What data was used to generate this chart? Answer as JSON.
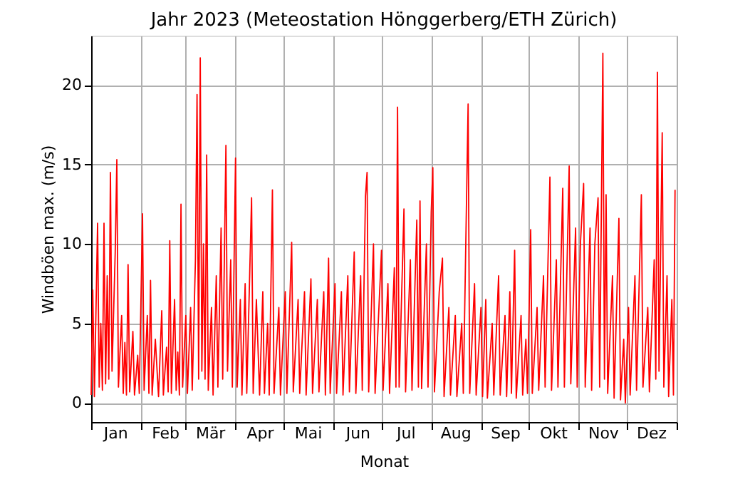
{
  "chart_data": {
    "type": "line",
    "title": "Jahr 2023   (Meteostation Hönggerberg/ETH Zürich)",
    "xlabel": "Monat",
    "ylabel": "Windböen max. (m/s)",
    "xlim": [
      "2023-01-01",
      "2024-01-01"
    ],
    "xticks": [
      {
        "value": "2023-01-01",
        "label": null
      },
      {
        "value": "2023-01-16",
        "label": "Jan"
      },
      {
        "value": "2023-02-01",
        "label": null
      },
      {
        "value": "2023-02-16",
        "label": "Feb"
      },
      {
        "value": "2023-03-01",
        "label": null
      },
      {
        "value": "2023-03-16",
        "label": "Mär"
      },
      {
        "value": "2023-04-01",
        "label": null
      },
      {
        "value": "2023-04-16",
        "label": "Apr"
      },
      {
        "value": "2023-05-01",
        "label": null
      },
      {
        "value": "2023-05-16",
        "label": "Mai"
      },
      {
        "value": "2023-06-01",
        "label": null
      },
      {
        "value": "2023-06-16",
        "label": "Jun"
      },
      {
        "value": "2023-07-01",
        "label": null
      },
      {
        "value": "2023-07-16",
        "label": "Jul"
      },
      {
        "value": "2023-08-01",
        "label": null
      },
      {
        "value": "2023-08-16",
        "label": "Aug"
      },
      {
        "value": "2023-09-01",
        "label": null
      },
      {
        "value": "2023-09-16",
        "label": "Sep"
      },
      {
        "value": "2023-10-01",
        "label": null
      },
      {
        "value": "2023-10-16",
        "label": "Okt"
      },
      {
        "value": "2023-11-01",
        "label": null
      },
      {
        "value": "2023-11-16",
        "label": "Nov"
      },
      {
        "value": "2023-12-01",
        "label": null
      },
      {
        "value": "2023-12-16",
        "label": "Dez"
      },
      {
        "value": "2024-01-01",
        "label": null
      }
    ],
    "ylim": [
      -1.2,
      23.1
    ],
    "yticks": [
      0,
      5,
      10,
      15,
      20
    ],
    "grid": true,
    "line_style": "solid",
    "marker": "none",
    "x": [
      "2023-01-01",
      "2023-01-02",
      "2023-01-03",
      "2023-01-05",
      "2023-01-06",
      "2023-01-07",
      "2023-01-08",
      "2023-01-09",
      "2023-01-10",
      "2023-01-11",
      "2023-01-12",
      "2023-01-13",
      "2023-01-14",
      "2023-01-16",
      "2023-01-17",
      "2023-01-18",
      "2023-01-20",
      "2023-01-21",
      "2023-01-22",
      "2023-01-23",
      "2023-01-24",
      "2023-01-25",
      "2023-01-27",
      "2023-01-28",
      "2023-01-30",
      "2023-01-31",
      "2023-02-02",
      "2023-02-03",
      "2023-02-05",
      "2023-02-06",
      "2023-02-07",
      "2023-02-08",
      "2023-02-10",
      "2023-02-12",
      "2023-02-14",
      "2023-02-15",
      "2023-02-17",
      "2023-02-18",
      "2023-02-19",
      "2023-02-20",
      "2023-02-22",
      "2023-02-23",
      "2023-02-24",
      "2023-02-25",
      "2023-02-26",
      "2023-02-27",
      "2023-03-01",
      "2023-03-02",
      "2023-03-04",
      "2023-03-05",
      "2023-03-07",
      "2023-03-08",
      "2023-03-09",
      "2023-03-10",
      "2023-03-11",
      "2023-03-12",
      "2023-03-13",
      "2023-03-14",
      "2023-03-15",
      "2023-03-17",
      "2023-03-18",
      "2023-03-20",
      "2023-03-21",
      "2023-03-23",
      "2023-03-24",
      "2023-03-26",
      "2023-03-27",
      "2023-03-29",
      "2023-03-30",
      "2023-04-01",
      "2023-04-02",
      "2023-04-04",
      "2023-04-05",
      "2023-04-07",
      "2023-04-08",
      "2023-04-11",
      "2023-04-12",
      "2023-04-14",
      "2023-04-16",
      "2023-04-18",
      "2023-04-19",
      "2023-04-21",
      "2023-04-22",
      "2023-04-24",
      "2023-04-25",
      "2023-04-28",
      "2023-04-29",
      "2023-05-02",
      "2023-05-03",
      "2023-05-06",
      "2023-05-07",
      "2023-05-10",
      "2023-05-11",
      "2023-05-14",
      "2023-05-15",
      "2023-05-18",
      "2023-05-19",
      "2023-05-22",
      "2023-05-23",
      "2023-05-26",
      "2023-05-27",
      "2023-05-29",
      "2023-05-30",
      "2023-06-02",
      "2023-06-03",
      "2023-06-06",
      "2023-06-07",
      "2023-06-10",
      "2023-06-11",
      "2023-06-14",
      "2023-06-15",
      "2023-06-18",
      "2023-06-19",
      "2023-06-21",
      "2023-06-22",
      "2023-06-23",
      "2023-06-26",
      "2023-06-27",
      "2023-07-01",
      "2023-07-02",
      "2023-07-05",
      "2023-07-06",
      "2023-07-09",
      "2023-07-10",
      "2023-07-11",
      "2023-07-12",
      "2023-07-15",
      "2023-07-16",
      "2023-07-19",
      "2023-07-20",
      "2023-07-23",
      "2023-07-24",
      "2023-07-25",
      "2023-07-26",
      "2023-07-29",
      "2023-07-30",
      "2023-08-01",
      "2023-08-02",
      "2023-08-03",
      "2023-08-06",
      "2023-08-08",
      "2023-08-09",
      "2023-08-12",
      "2023-08-13",
      "2023-08-16",
      "2023-08-17",
      "2023-08-20",
      "2023-08-21",
      "2023-08-24",
      "2023-08-25",
      "2023-08-28",
      "2023-08-29",
      "2023-09-01",
      "2023-09-02",
      "2023-09-04",
      "2023-09-05",
      "2023-09-08",
      "2023-09-09",
      "2023-09-12",
      "2023-09-13",
      "2023-09-16",
      "2023-09-17",
      "2023-09-19",
      "2023-09-20",
      "2023-09-22",
      "2023-09-23",
      "2023-09-26",
      "2023-09-27",
      "2023-09-29",
      "2023-09-30",
      "2023-10-02",
      "2023-10-03",
      "2023-10-06",
      "2023-10-07",
      "2023-10-10",
      "2023-10-11",
      "2023-10-14",
      "2023-10-15",
      "2023-10-18",
      "2023-10-19",
      "2023-10-22",
      "2023-10-23",
      "2023-10-26",
      "2023-10-27",
      "2023-10-30",
      "2023-10-31",
      "2023-11-02",
      "2023-11-04",
      "2023-11-05",
      "2023-11-08",
      "2023-11-09",
      "2023-11-11",
      "2023-11-13",
      "2023-11-14",
      "2023-11-16",
      "2023-11-17",
      "2023-11-18",
      "2023-11-19",
      "2023-11-22",
      "2023-11-23",
      "2023-11-26",
      "2023-11-27",
      "2023-11-29",
      "2023-11-30",
      "2023-12-02",
      "2023-12-03",
      "2023-12-06",
      "2023-12-07",
      "2023-12-10",
      "2023-12-11",
      "2023-12-14",
      "2023-12-15",
      "2023-12-18",
      "2023-12-19",
      "2023-12-20",
      "2023-12-21",
      "2023-12-23",
      "2023-12-24",
      "2023-12-26",
      "2023-12-27",
      "2023-12-29",
      "2023-12-30",
      "2023-12-31"
    ],
    "series": [
      {
        "color": "#ff0000",
        "values": [
          0.5,
          7.1,
          0.4,
          11.3,
          1.0,
          5.0,
          0.8,
          11.3,
          1.2,
          8.0,
          1.5,
          14.5,
          2.0,
          9.5,
          15.3,
          1.0,
          5.5,
          0.6,
          3.8,
          0.5,
          8.7,
          0.7,
          4.5,
          0.5,
          3.0,
          0.6,
          11.9,
          0.8,
          5.5,
          0.6,
          7.7,
          0.5,
          4.0,
          0.4,
          5.8,
          0.5,
          3.5,
          0.7,
          10.2,
          0.6,
          6.5,
          0.8,
          3.2,
          0.5,
          12.5,
          1.0,
          5.5,
          0.6,
          6.0,
          0.8,
          9.0,
          19.4,
          1.5,
          21.7,
          2.0,
          10.0,
          1.5,
          15.6,
          0.8,
          6.0,
          0.5,
          8.0,
          1.0,
          11.0,
          1.5,
          16.2,
          2.0,
          9.0,
          1.0,
          15.4,
          1.0,
          6.5,
          0.5,
          7.5,
          0.6,
          12.9,
          0.6,
          6.5,
          0.5,
          7.0,
          0.6,
          5.0,
          0.5,
          13.4,
          0.6,
          6.0,
          0.5,
          7.0,
          0.6,
          10.1,
          0.7,
          6.5,
          0.6,
          7.0,
          0.5,
          7.8,
          0.6,
          6.5,
          0.7,
          7.0,
          0.5,
          9.1,
          0.6,
          7.5,
          0.6,
          7.0,
          0.5,
          8.0,
          0.7,
          9.5,
          0.6,
          8.0,
          0.8,
          13.0,
          14.5,
          0.7,
          10.0,
          0.6,
          9.6,
          0.8,
          7.5,
          0.6,
          8.5,
          1.0,
          18.6,
          1.0,
          12.2,
          0.7,
          9.0,
          0.8,
          11.5,
          1.0,
          12.7,
          0.9,
          10.0,
          1.0,
          12.0,
          14.8,
          0.7,
          7.0,
          9.1,
          0.4,
          6.0,
          0.5,
          5.5,
          0.4,
          5.0,
          0.6,
          18.8,
          0.6,
          7.5,
          0.5,
          6.0,
          0.4,
          6.5,
          0.3,
          5.0,
          0.5,
          8.0,
          0.5,
          5.5,
          0.4,
          7.0,
          0.6,
          9.6,
          0.3,
          5.5,
          0.5,
          4.0,
          0.6,
          10.9,
          0.6,
          6.0,
          0.8,
          8.0,
          1.0,
          14.2,
          0.8,
          9.0,
          1.0,
          13.5,
          1.0,
          14.9,
          1.2,
          11.0,
          1.0,
          10.0,
          13.8,
          1.0,
          11.0,
          0.8,
          10.0,
          12.9,
          1.0,
          22.0,
          1.5,
          13.1,
          0.6,
          8.0,
          0.3,
          11.6,
          0.2,
          4.0,
          0.0,
          6.0,
          0.5,
          8.0,
          0.8,
          13.1,
          1.0,
          6.0,
          0.7,
          9.0,
          1.5,
          20.8,
          2.0,
          17.0,
          1.0,
          8.0,
          0.4,
          6.5,
          0.5,
          13.4
        ]
      }
    ]
  }
}
